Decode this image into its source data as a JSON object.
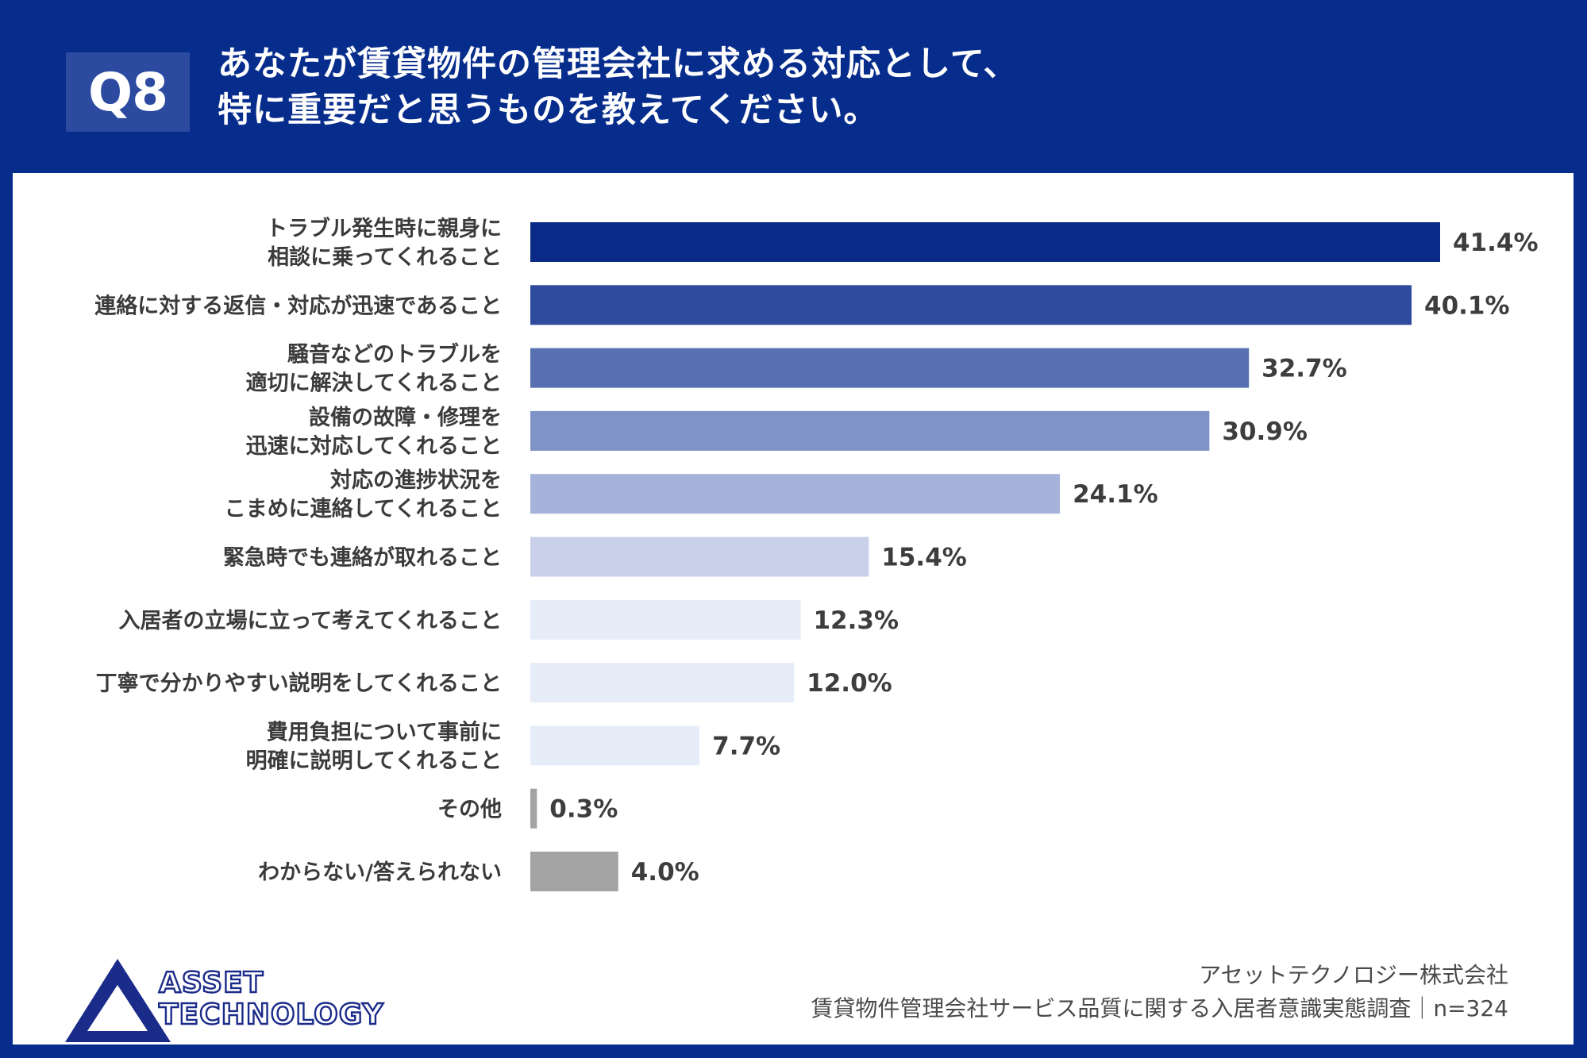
{
  "header": {
    "badge": "Q8",
    "question_line1": "あなたが賃貸物件の管理会社に求める対応として、",
    "question_line2": "特に重要だと思うものを教えてください。"
  },
  "chart_data": {
    "type": "bar",
    "orientation": "horizontal",
    "title": "あなたが賃貸物件の管理会社に求める対応として、特に重要だと思うものを教えてください。",
    "categories": [
      [
        "トラブル発生時に親身に",
        "相談に乗ってくれること"
      ],
      [
        "連絡に対する返信・対応が迅速であること"
      ],
      [
        "騒音などのトラブルを",
        "適切に解決してくれること"
      ],
      [
        "設備の故障・修理を",
        "迅速に対応してくれること"
      ],
      [
        "対応の進捗状況を",
        "こまめに連絡してくれること"
      ],
      [
        "緊急時でも連絡が取れること"
      ],
      [
        "入居者の立場に立って考えてくれること"
      ],
      [
        "丁寧で分かりやすい説明をしてくれること"
      ],
      [
        "費用負担について事前に",
        "明確に説明してくれること"
      ],
      [
        "その他"
      ],
      [
        "わからない/答えられない"
      ]
    ],
    "values": [
      41.4,
      40.1,
      32.7,
      30.9,
      24.1,
      15.4,
      12.3,
      12.0,
      7.7,
      0.3,
      4.0
    ],
    "value_labels": [
      "41.4%",
      "40.1%",
      "32.7%",
      "30.9%",
      "24.1%",
      "15.4%",
      "12.3%",
      "12.0%",
      "7.7%",
      "0.3%",
      "4.0%"
    ],
    "colors": [
      "#0a2a88",
      "#2e4b9e",
      "#5670b2",
      "#8093c7",
      "#a7b2da",
      "#c9d1ea",
      "#e7edf8",
      "#e7edf8",
      "#e7edf8",
      "#a3a3a3",
      "#a3a3a3"
    ],
    "xlim": [
      0,
      41.4
    ],
    "grid": false,
    "legend": "none",
    "xlabel": "",
    "ylabel": ""
  },
  "footer": {
    "company": "アセットテクノロジー株式会社",
    "survey": "賃貸物件管理会社サービス品質に関する入居者意識実態調査｜n=324"
  },
  "logo": {
    "line1": "ASSET",
    "line2": "TECHNOLOGY"
  }
}
